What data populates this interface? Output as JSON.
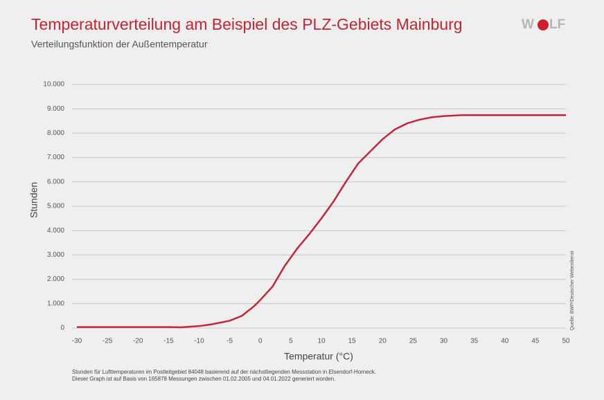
{
  "chart_data": {
    "type": "line",
    "title": "Temperaturverteilung am Beispiel des PLZ-Gebiets Mainburg",
    "subtitle": "Verteilungsfunktion der Außentemperatur",
    "logo": [
      "W",
      "LF"
    ],
    "x_label": "Temperatur (°C)",
    "y_label": "Stunden",
    "source": "Quelle: BWP/Deutscher Wetterdienst",
    "footnotes": [
      "Stunden für Lufttemperaturen im Postleitgebiet 84048 basierend auf der nächstliegenden Messstation in Elsendorf-Horneck.",
      "Dieser Graph ist auf Basis von 165878 Messungen zwischen 01.02.2005 und 04.01.2022 generiert worden."
    ],
    "x": [
      -30,
      -25,
      -20,
      -15,
      -13,
      -10,
      -8,
      -5,
      -3,
      -1,
      0,
      2,
      4,
      6,
      8,
      10,
      12,
      14,
      16,
      18,
      20,
      22,
      24,
      26,
      28,
      30,
      33,
      35,
      40,
      45,
      50
    ],
    "series": [
      {
        "color": "#c3263a",
        "values": [
          40,
          40,
          40,
          40,
          30,
          80,
          150,
          300,
          500,
          900,
          1150,
          1700,
          2550,
          3250,
          3850,
          4500,
          5200,
          6000,
          6750,
          7250,
          7750,
          8150,
          8400,
          8550,
          8650,
          8700,
          8740,
          8740,
          8740,
          8740,
          8740
        ]
      }
    ],
    "xlim": [
      -30,
      50
    ],
    "xticks": [
      -30,
      -25,
      -20,
      -15,
      -10,
      -5,
      0,
      5,
      10,
      15,
      20,
      25,
      30,
      35,
      40,
      45,
      50
    ],
    "ylim": [
      0,
      10000
    ],
    "yticks": [
      0,
      {
        "value": 1000,
        "label": "1.000"
      },
      {
        "value": 2000,
        "label": "2.000"
      },
      {
        "value": 3000,
        "label": "3.000"
      },
      {
        "value": 4000,
        "label": "4.000"
      },
      {
        "value": 5000,
        "label": "5.000"
      },
      {
        "value": 6000,
        "label": "6.000"
      },
      {
        "value": 7000,
        "label": "7.000"
      },
      {
        "value": 8000,
        "label": "8.000"
      },
      {
        "value": 9000,
        "label": "9.000"
      },
      {
        "value": 10000,
        "label": "10.000"
      }
    ],
    "grid": true
  }
}
